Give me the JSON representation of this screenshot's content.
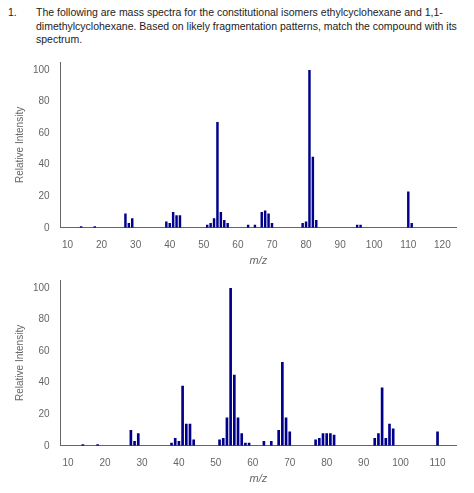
{
  "chart_data": [
    {
      "type": "bar",
      "title": "1.",
      "subtitle": "The following are mass spectra for the constitutional isomers ethylcyclohexane and 1,1-\ndimethylcyclohexane. Based on likely fragmentation patterns, match the compound with its spectrum.",
      "x_label": "m/z",
      "y_label": "Relative Intensity",
      "x": [
        14,
        18,
        27,
        28,
        29,
        39,
        40,
        41,
        42,
        43,
        51,
        52,
        53,
        54,
        55,
        56,
        57,
        63,
        65,
        67,
        68,
        69,
        70,
        79,
        80,
        81,
        82,
        83,
        95,
        96,
        110,
        111
      ],
      "values": [
        1,
        1,
        9,
        3,
        6,
        4,
        3,
        10,
        8,
        8,
        2,
        3,
        6,
        67,
        10,
        5,
        3,
        2,
        2,
        10,
        11,
        9,
        3,
        3,
        4,
        100,
        45,
        5,
        2,
        2,
        23,
        3
      ],
      "color": "#00008B",
      "xlim": [
        8,
        124
      ],
      "xticks": [
        10,
        20,
        30,
        40,
        50,
        60,
        70,
        80,
        90,
        100,
        110,
        120
      ],
      "ylim": [
        0,
        105
      ],
      "yticks": [
        0,
        20,
        40,
        60,
        80,
        100
      ],
      "grid": false
    },
    {
      "type": "bar",
      "x_label": "m/z",
      "y_label": "Relative Intensity",
      "x": [
        14,
        18,
        27,
        28,
        29,
        38,
        39,
        40,
        41,
        42,
        43,
        44,
        51,
        52,
        53,
        54,
        55,
        56,
        57,
        58,
        59,
        63,
        65,
        67,
        68,
        69,
        70,
        77,
        78,
        79,
        80,
        81,
        82,
        93,
        94,
        95,
        96,
        97,
        98,
        110
      ],
      "values": [
        1,
        1,
        10,
        3,
        8,
        2,
        5,
        3,
        38,
        14,
        14,
        4,
        4,
        5,
        18,
        100,
        45,
        18,
        8,
        2,
        2,
        3,
        3,
        10,
        53,
        18,
        9,
        4,
        5,
        8,
        8,
        8,
        7,
        5,
        8,
        37,
        5,
        14,
        11,
        9
      ],
      "color": "#00008B",
      "xlim": [
        8,
        115
      ],
      "xticks": [
        10,
        20,
        30,
        40,
        50,
        60,
        70,
        80,
        90,
        100,
        110
      ],
      "ylim": [
        0,
        105
      ],
      "yticks": [
        0,
        20,
        40,
        60,
        80,
        100
      ],
      "grid": false
    }
  ]
}
